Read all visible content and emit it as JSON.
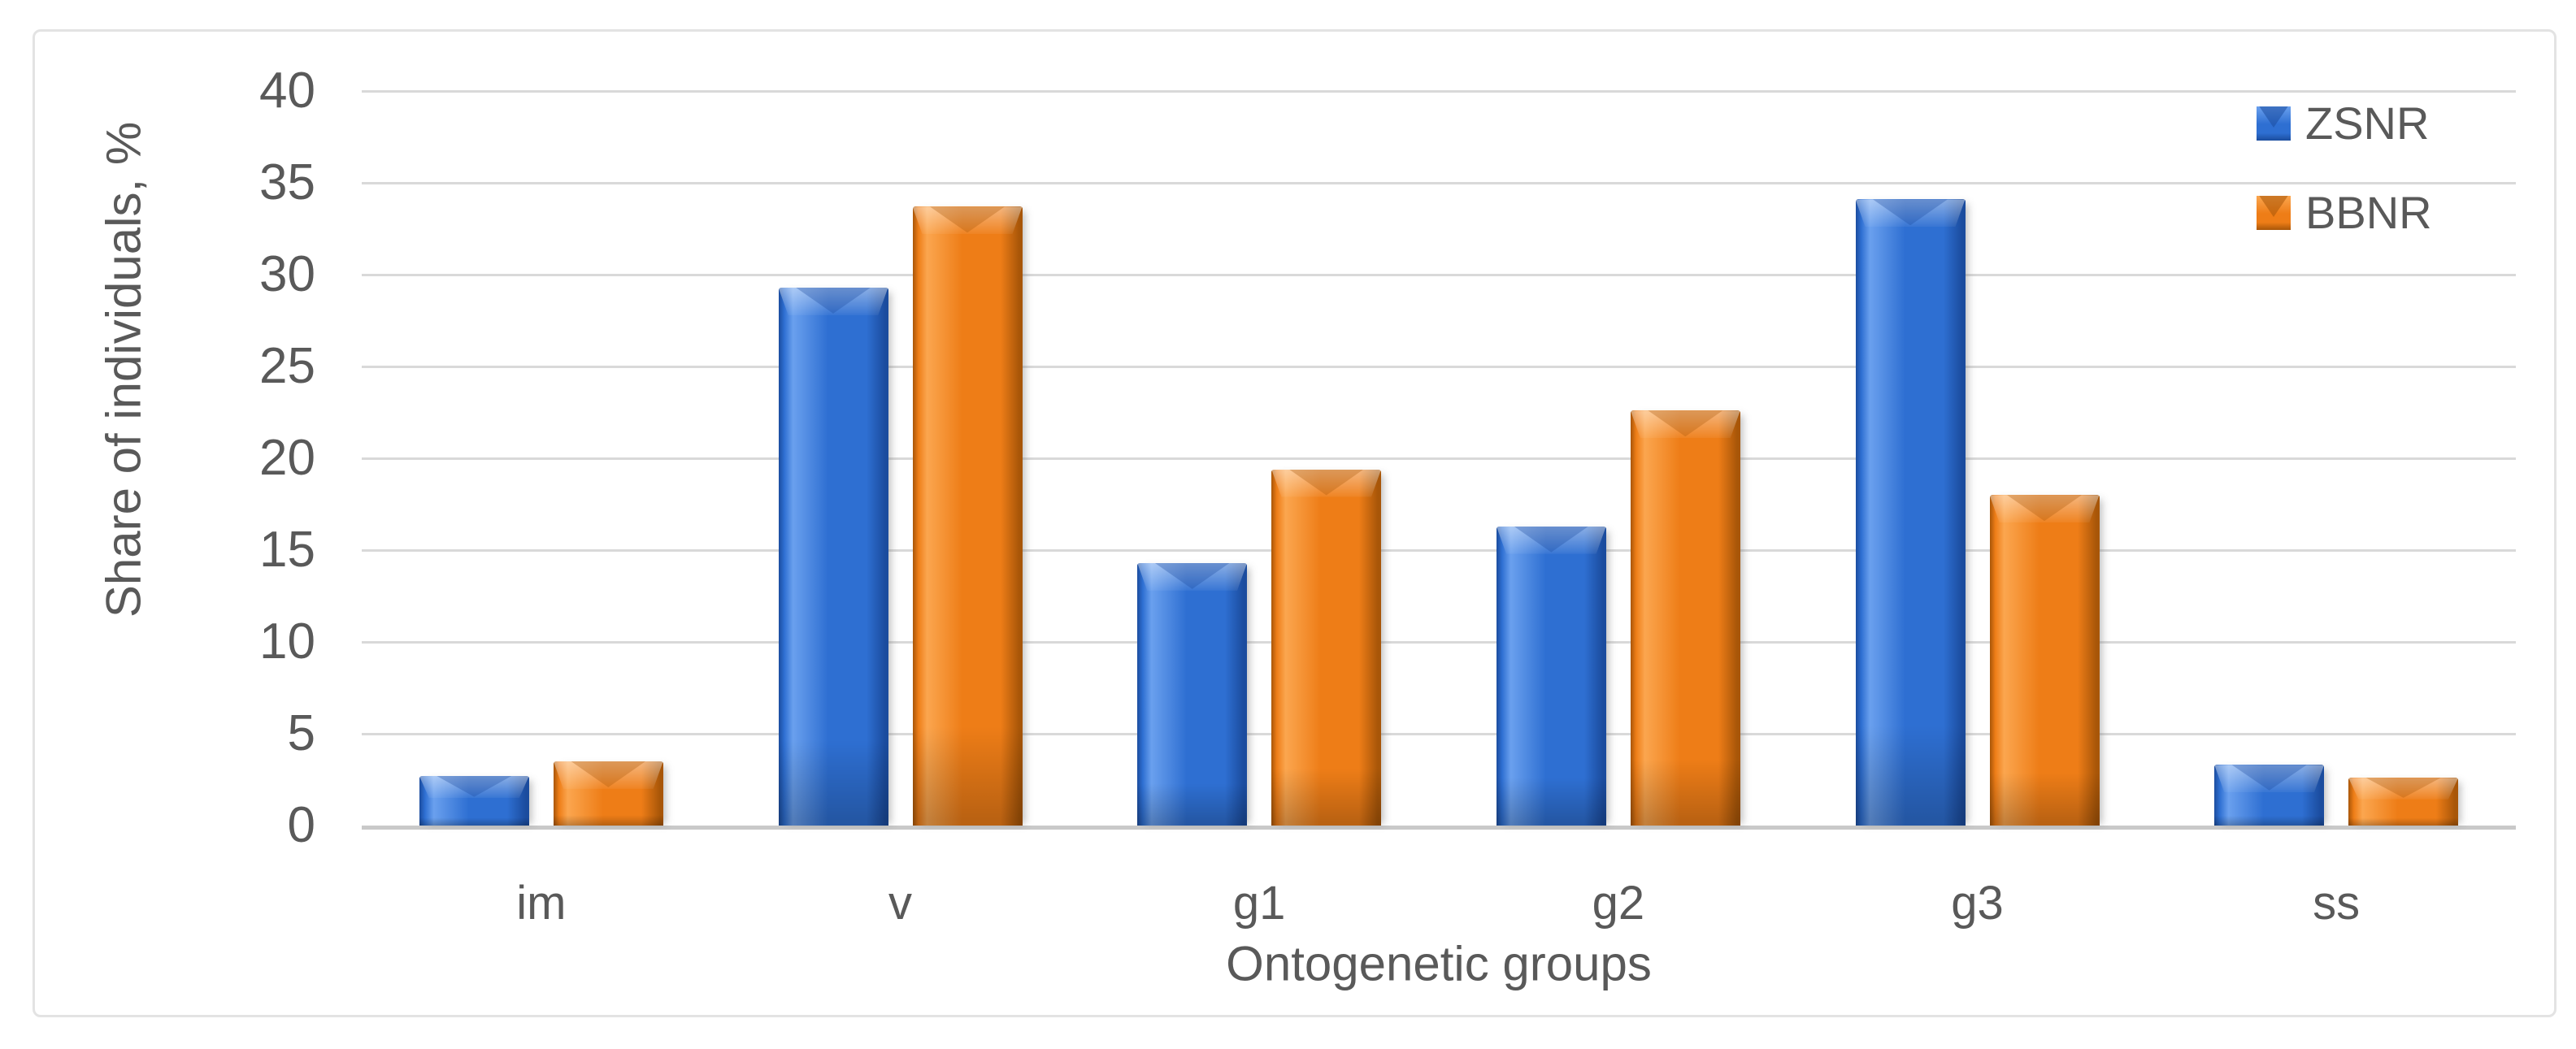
{
  "figure": {
    "background": "#FFFFFF",
    "border_color": "#E3E3E3",
    "text_color": "#595959",
    "gridline_color": "#D9D9D9",
    "axisline_color": "#C9C9C9"
  },
  "chart_data": {
    "type": "bar",
    "title": "",
    "categories": [
      "im",
      "v",
      "g1",
      "g2",
      "g3",
      "ss"
    ],
    "series": [
      {
        "name": "ZSNR",
        "color": "#2E6FD2",
        "color_light": "#6AA0EE",
        "color_dark": "#1B4C9E",
        "values": [
          2.7,
          29.3,
          14.3,
          16.3,
          34.1,
          3.3
        ]
      },
      {
        "name": "BBNR",
        "color": "#EE7D17",
        "color_light": "#FBA64F",
        "color_dark": "#A85608",
        "values": [
          3.5,
          33.7,
          19.4,
          22.6,
          18.0,
          2.6
        ]
      }
    ],
    "xlabel": "Ontogenetic groups",
    "ylabel": "Share of individuals, %",
    "ylim": [
      0,
      40
    ],
    "ytick_step": 5,
    "yticks": [
      0,
      5,
      10,
      15,
      20,
      25,
      30,
      35,
      40
    ],
    "grid": "horizontal",
    "legend_position": "top-right",
    "bar_style": "3d-bevel"
  }
}
